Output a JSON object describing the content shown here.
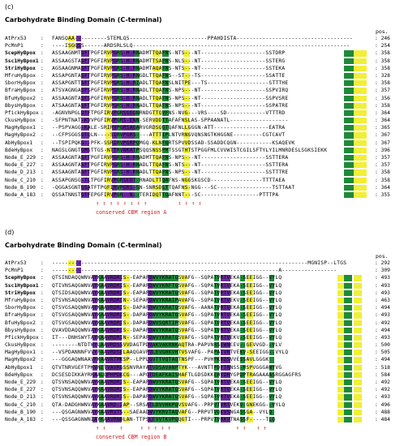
{
  "panels": [
    {
      "letter": "(c)",
      "title": "Carbohydrate Binding Domain (C-terminal)",
      "pos_header": "pos.",
      "region_label": "conserved  CBM region A",
      "rows": [
        {
          "name": "AtPrx53",
          "bold": false,
          "seq": "FANSQAA----------STEMLQS------------------------PPAHDISTA------------------------------------",
          "pos": "246"
        },
        {
          "name": "PcMnP1",
          "bold": false,
          "seq": "----ISGGSS------ARDSRLSLQ-------------------------------------------------------------------",
          "pos": "254"
        },
        {
          "name": "ScepHyBpox",
          "bold": true,
          "seq": "ASSAAGNMTSFTPGFIRVPGRS-H-RNADMTTQAFNS-NTS---NT--------------------SSTDRP",
          "pos": "358"
        },
        {
          "name": "Ssc1HyBpox1",
          "bold": true,
          "seq": "ASSAAGSTASFTPGFIRVPGRS-H-RNADMTTSAFNS-NLS---NT--------------------SSTERG",
          "pos": "358"
        },
        {
          "name": "StriHyBpox",
          "bold": true,
          "seq": "AGSAAGNMASFTPGFIRVPGRS-H-RNADMTAQAFNS-NTS---NT--------------------SSTEKA",
          "pos": "358"
        },
        {
          "name": "MfruHyBpox",
          "bold": false,
          "seq": "ASSAPGNTASFTPGFIRVPGRS-H-RNGDLTTQAFNS--ST---TS--------------------SSATTE",
          "pos": "328"
        },
        {
          "name": "SborHyBpox",
          "bold": false,
          "seq": "ASSAPGNTTSFTPGFIRVPGRS-H-RIADLTTQAFNSLNITPE---TS-------------------STTTHE",
          "pos": "358"
        },
        {
          "name": "BfraHyBpox",
          "bold": false,
          "seq": "ATSVAGNGASFSPGFIRVPGRS-H-RNADLTTQAFNS-NPS---NT--------------------SSPVIRQ",
          "pos": "357"
        },
        {
          "name": "BfuHyBpox2",
          "bold": false,
          "seq": "ASSAAGNTASFSPGFIRVPGRS-H-RNADLTTQAFNS-NPS---NT--------------------SSPVSRE",
          "pos": "356"
        },
        {
          "name": "BbysHyBpox",
          "bold": false,
          "seq": "ATSAAGNTASFTPGFIRVPGRS-H-RNADLTTQAFNS-NPS---NT--------------------SSPATRE",
          "pos": "358"
        },
        {
          "name": "PfickHyBpox",
          "bold": false,
          "seq": "-AGNVNPGLDTFTPGFIRVPGRSGGGNRNDGTTQVFNS-NVG---VRS----SD------------VTTTRD",
          "pos": "364"
        },
        {
          "name": "CkusHyBpox",
          "bold": false,
          "seq": "-SFPNTNAT-KVVPGFIRVPGRS-ENN-SERVDDTTAFAFNSLAS-SPPAANATL------------------",
          "pos": "364"
        },
        {
          "name": "MagHyBpox1",
          "bold": false,
          "seq": "--PSPVAGG-KALE-SRIRVPGRSAGARVGRDSQGTQAFNLLGGGN-ATT-----------------EATRA",
          "pos": "365"
        },
        {
          "name": "MagHyBpox2",
          "bold": false,
          "seq": "--CFPSGGSGTQLN----SIRVPGRS----ATTTIPLNTVRNGVQNSNGTKHGGNE---------CGTCAVT",
          "pos": "367"
        },
        {
          "name": "AbHyBpox1",
          "bold": false,
          "seq": "--TSPIPQKG--PFK-SSRIRVPGRPQMGQ-KLNFQRTSPVVDSSAD-SSADDCQGN-----------KSAQEVK",
          "pos": "367"
        },
        {
          "name": "BdeHyBpox",
          "bold": false,
          "seq": "NAGSLGNGTGMSTTGS-NTTRVNKATPSQQSNSSPMTSSGTHTSTPGGFMLCVVWISTCGILSFTYLYILMNRDESLSGKSIEKK",
          "pos": "396"
        },
        {
          "name": "Node_E_229",
          "bold": false,
          "seq": "ASSAAGNTASFTPGFIRVPGRS-H-RNADMTTQAFNS-NPS---NT--------------------SSTTERA",
          "pos": "357"
        },
        {
          "name": "Node_E_227",
          "bold": false,
          "seq": "ASSAAGNTASFTPGFIRVPGRS-H-RNADLTTQAFNS-NTS---NT--------------------SSTTERA",
          "pos": "357"
        },
        {
          "name": "Node_D_213",
          "bold": false,
          "seq": "ASSAAGNTASFTPGFIRVPGRS-H-RNADLTTQAFNS-NPS---NT--------------------SSTTTRE",
          "pos": "358"
        },
        {
          "name": "Node_C_210",
          "bold": false,
          "seq": "ASSAPGNSG-TLTPGFIRVPGRSEDT-RNADLTTQAFNS-NGGSKGSCD----------------TTTTAEA",
          "pos": "358"
        },
        {
          "name": "Node_B_190",
          "bold": false,
          "seq": "-QGGASGNTGSATFTPGFIRVPGRS-SN-SNRSDLTTQAFNS-NGG---SC-----------------TSTTAAT",
          "pos": "364"
        },
        {
          "name": "Node_A_183",
          "bold": false,
          "seq": "QSSATNNSTGTFEPGFIRVPGR--N--TERIDQTTQAFNNT---SC------------------PTTTPA",
          "pos": "355"
        }
      ]
    },
    {
      "letter": "(d)",
      "title": "Carbohydrate Binding Domain (C-terminal)",
      "pos_header": "pos.",
      "region_label": "conserved  CBM region B",
      "rows": [
        {
          "name": "AtPrx53",
          "bold": false,
          "seq": "-------------------------------------------------------------------------------MGNISP--LTGS",
          "pos": "292"
        },
        {
          "name": "PcMnP1",
          "bold": false,
          "seq": "----------------------------------------------------------------------A-----------------",
          "pos": "309"
        },
        {
          "name": "ScepHyBpox",
          "bold": true,
          "seq": "QTSINDAQQWNVAYKAAVRDRIS--EAPAFDWVYKRATQSVAFG--SQPATVRTVEKA-SEEIGG--VYLQ",
          "pos": "493"
        },
        {
          "name": "Ssc1HyBpox1",
          "bold": true,
          "seq": "QTIVNSAQGWNVAYKAAVRDRIS--EAPAFDWVYKRFTQSVAFG--SQPATVRTVEKA-SEEIGG--VYLQ",
          "pos": "493"
        },
        {
          "name": "StriHyBpox",
          "bold": true,
          "seq": "QTSIDSAQQWNVAYKAAVRDRIS--EAPAFDWVYKRATQSVAFG--SQPATVRTVEKA-SEEIGG--VYLQ",
          "pos": "493"
        },
        {
          "name": "MfruHyBpox",
          "bold": false,
          "seq": "QTSVNSAQQWNVAYKAAVRDRIN--SEPAFDWVYKRAIPAVAFG--SQPATVRTVEKV-SEEIGG--VYLQ",
          "pos": "463"
        },
        {
          "name": "SborHyBpox",
          "bold": false,
          "seq": "QTSVGSAQQWNVAYKAAVRDRIS--DAPAFDWVYKRATQSVAFG--AANATVRTVEKA-SEEIGG--VYLQ",
          "pos": "494"
        },
        {
          "name": "BfraHyBpox",
          "bold": false,
          "seq": "QTSVGSAQQWNVAYKAAVRDRIS--DAPAFDWVYKRATQSVAFG--SQPATVRTVEKA-SEEIGG--VYLQ",
          "pos": "493"
        },
        {
          "name": "BfuHyBpox2",
          "bold": false,
          "seq": "QTSVGSAQQWNVAYKAAVRDRIS--DAPAFDWVSQRTIPSVAFG--SQPATVRTVEKA-SEEIGG--VYLQ",
          "pos": "492"
        },
        {
          "name": "BbysHyBpox",
          "bold": false,
          "seq": "QVAVDDAQQWNVAYKAAVRDRIS--DAPAFDWVYKRATQSVAFG--SQPATVRTVEKA-SEEIGG--VYLQ",
          "pos": "494"
        },
        {
          "name": "PfickHyBpox",
          "bold": false,
          "seq": "IT---DNHSWYTAYKAAVRDRIN--SEPAFDWVYKRATQSVAFG--SQPATVRTVEKV-SEEIGG--VYLQ",
          "pos": "493"
        },
        {
          "name": "CkusHyBpox",
          "bold": false,
          "seq": "--------NTDTWYLAAVRDSSVVDAGTPDVAKVAKRNKAQTRA-PAPVNRSEWNCEV--GEVVGD--VLV",
          "pos": "500"
        },
        {
          "name": "MagHyBpox1",
          "bold": false,
          "seq": "--VSPDANNNFVVYFAAVRDSELAAQGAVPVLEVGHKVHTVSVAFG--PAPATVRTVEKV-SEEIGG--VYLQ",
          "pos": "505"
        },
        {
          "name": "MagHyBpox2",
          "bold": false,
          "seq": "---GGGAQWNAAVFKAAVRTMKSP--LPPLGVTTVQTAQTNSPF---PVHPKRQSVVESSAVLGGGK",
          "pos": "494"
        },
        {
          "name": "AbHyBpox1",
          "bold": false,
          "seq": "QTVTNRVGEFTPKVNITVAVRGSSNVRAYATVDSAVANPTYK---AVNTTPDFTRNSS-MSPVGGGAWYVG",
          "pos": "518"
        },
        {
          "name": "BdeHyBpox",
          "bold": false,
          "seq": "DCSESDIKKAYRKAALQPHPDKCG---APGTDEAFKAISHAFTLGDSDKKEHYDRYGPDPTRAGAAAASRGGAGFRS",
          "pos": "584"
        },
        {
          "name": "Node_E_229",
          "bold": false,
          "seq": "QTSVNSAQQWNVAYKAAVRDRIS--EAPAFDWVYKRATQSVAFG--SQPATVRTVEKA-SEEIGG--VYLQ",
          "pos": "492"
        },
        {
          "name": "Node_E_227",
          "bold": false,
          "seq": "QTSVNSAQQWNVAYKAAVRDRIS--EAPAFDWVYKRATQSVAFG--SQPATVRTVEKA-SEEIGG--VYLQ",
          "pos": "492"
        },
        {
          "name": "Node_D_213",
          "bold": false,
          "seq": "QTSVNSAQQWNVAYKAAVRDRIS--DAPAFDWVYKRATQSVAFG--SQPATVRTVEKA-SEEIGG--VYLQ",
          "pos": "493"
        },
        {
          "name": "Node_C_210",
          "bold": false,
          "seq": "QTA-DADGHWNVAYKAAVRD-IAP--SRSATLDVVHKPQVSVAFG--PRPVTVRTVEKV-GNEKGG--VYLQ",
          "pos": "496"
        },
        {
          "name": "Node_B_190",
          "bold": false,
          "seq": "---QSGAGNWNVAYKAAVRVTS--SAEAADWVYKRVTAQVAFG--PRPVTVQKVSNGASSGA--VYLQ",
          "pos": "488"
        },
        {
          "name": "Node_A_183",
          "bold": false,
          "seq": "---QSSGAGNWNIAYKAAVRNDLAN-TTPSLEVVTKVPQQGTI---PRPVTVRKVTNASSF-----TLQ",
          "pos": "484"
        }
      ]
    }
  ]
}
